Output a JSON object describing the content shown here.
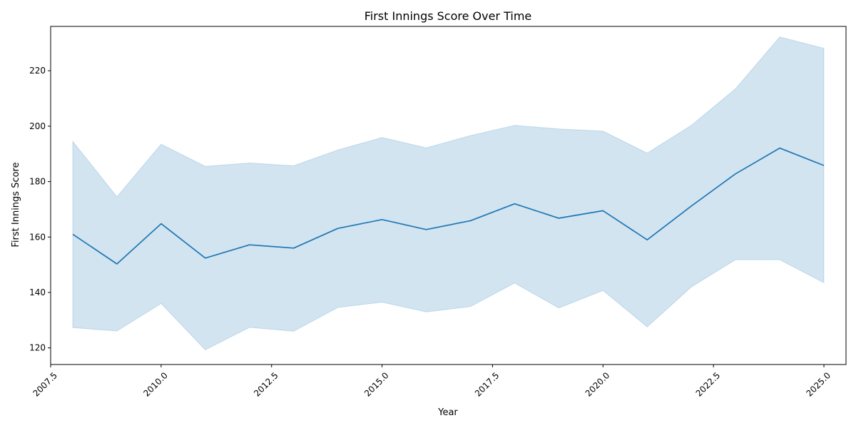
{
  "chart_data": {
    "type": "line",
    "title": "First Innings Score Over Time",
    "xlabel": "Year",
    "ylabel": "First Innings Score",
    "xlim": [
      2007.5,
      2025.5
    ],
    "ylim": [
      114,
      236
    ],
    "x_ticks": [
      2007.5,
      2010.0,
      2012.5,
      2015.0,
      2017.5,
      2020.0,
      2022.5,
      2025.0
    ],
    "x_tick_labels": [
      "2007.5",
      "2010.0",
      "2012.5",
      "2015.0",
      "2017.5",
      "2020.0",
      "2022.5",
      "2025.0"
    ],
    "y_ticks": [
      120,
      140,
      160,
      180,
      200,
      220
    ],
    "y_tick_labels": [
      "120",
      "140",
      "160",
      "180",
      "200",
      "220"
    ],
    "grid": false,
    "line_color": "#1f77b4",
    "band_color": "#1f77b4",
    "x": [
      2008,
      2009,
      2010,
      2011,
      2012,
      2013,
      2014,
      2015,
      2016,
      2017,
      2018,
      2019,
      2020,
      2021,
      2022,
      2023,
      2024,
      2025
    ],
    "series": [
      {
        "values": [
          161.0,
          150.3,
          164.8,
          152.4,
          157.2,
          156.0,
          163.1,
          166.3,
          162.7,
          165.9,
          172.0,
          166.8,
          169.5,
          159.0,
          171.2,
          182.8,
          192.1,
          185.8
        ],
        "lower": [
          127.3,
          126.1,
          136.0,
          119.3,
          127.4,
          126.0,
          134.6,
          136.5,
          133.0,
          134.9,
          143.4,
          134.4,
          140.7,
          127.6,
          142.0,
          151.8,
          151.8,
          143.5
        ],
        "upper": [
          194.5,
          174.5,
          193.5,
          185.5,
          186.7,
          185.7,
          191.4,
          195.9,
          192.2,
          196.6,
          200.3,
          199.0,
          198.2,
          190.3,
          200.3,
          213.5,
          232.2,
          228.1
        ]
      }
    ]
  }
}
